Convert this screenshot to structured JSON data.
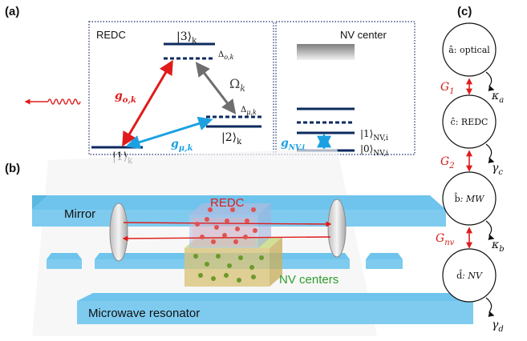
{
  "panels": {
    "a": "(a)",
    "b": "(b)",
    "c": "(c)"
  },
  "panel_a": {
    "redc_box": {
      "title": "REDC",
      "level_3": "|3⟩",
      "level_3_sub": "k",
      "level_2": "|2⟩",
      "level_2_sub": "k",
      "level_1": "|1⟩",
      "level_1_sub": "k",
      "delta_o": "Δ",
      "delta_o_sub": "o,k",
      "delta_mu": "Δ",
      "delta_mu_sub": "μ,k",
      "g_o": "g",
      "g_o_sub": "o,k",
      "g_mu": "g",
      "g_mu_sub": "μ,k",
      "omega": "Ω",
      "omega_sub": "k"
    },
    "nv_box": {
      "title": "NV center",
      "level_1": "|1⟩",
      "level_1_sub": "NV,i",
      "level_0": "|0⟩",
      "level_0_sub": "NV,i",
      "g_nv": "g",
      "g_nv_sub": "NV,i"
    }
  },
  "panel_b": {
    "mirror_label": "Mirror",
    "redc_label": "REDC",
    "nv_label": "NV centers",
    "resonator_label": "Microwave resonator"
  },
  "panel_c": {
    "nodes": [
      {
        "op": "â",
        "desc": ": optical",
        "decay": "κ",
        "decay_sub": "a"
      },
      {
        "op": "ĉ",
        "desc": ": REDC",
        "decay": "γ",
        "decay_sub": "c"
      },
      {
        "op": "b̂",
        "desc": ": MW",
        "decay": "κ",
        "decay_sub": "b"
      },
      {
        "op": "d̂",
        "desc": ": NV",
        "decay": "γ",
        "decay_sub": "d"
      }
    ],
    "couplings": [
      {
        "g": "G",
        "sub": "1"
      },
      {
        "g": "G",
        "sub": "2"
      },
      {
        "g": "G",
        "sub": "nv"
      }
    ]
  },
  "colors": {
    "level_navy": "#0d2a5e",
    "red": "#e01b1b",
    "blue": "#1ba1e2",
    "grey": "#6e6e6e",
    "beam_blue": "#7ec8ea",
    "green": "#2e9c2e"
  }
}
